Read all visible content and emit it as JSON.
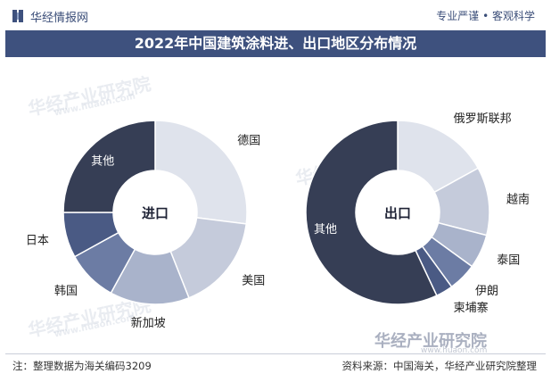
{
  "header": {
    "brand": "华经情报网",
    "slogan": "专业严谨 • 客观科学"
  },
  "title": "2022年中国建筑涂料进、出口地区分布情况",
  "colors": {
    "header_bar": "#3e517e",
    "series": [
      "#dfe3ec",
      "#c5cbdb",
      "#a9b3cb",
      "#6c7ca4",
      "#4a5a84",
      "#363e55"
    ]
  },
  "chart_data": [
    {
      "type": "pie",
      "center_label": "进口",
      "categories": [
        "德国",
        "美国",
        "新加坡",
        "韩国",
        "日本",
        "其他"
      ],
      "values": [
        27,
        17,
        14,
        9,
        8,
        25
      ]
    },
    {
      "type": "pie",
      "center_label": "出口",
      "categories": [
        "俄罗斯联邦",
        "越南",
        "泰国",
        "伊朗",
        "柬埔寨",
        "其他"
      ],
      "values": [
        17,
        12,
        6,
        5,
        3,
        57
      ]
    }
  ],
  "footer": {
    "note": "注：整理数据为海关编码3209",
    "source": "资料来源：中国海关，华经产业研究院整理"
  },
  "watermark": {
    "name": "华经产业研究院",
    "url": "www.huaon.com"
  }
}
